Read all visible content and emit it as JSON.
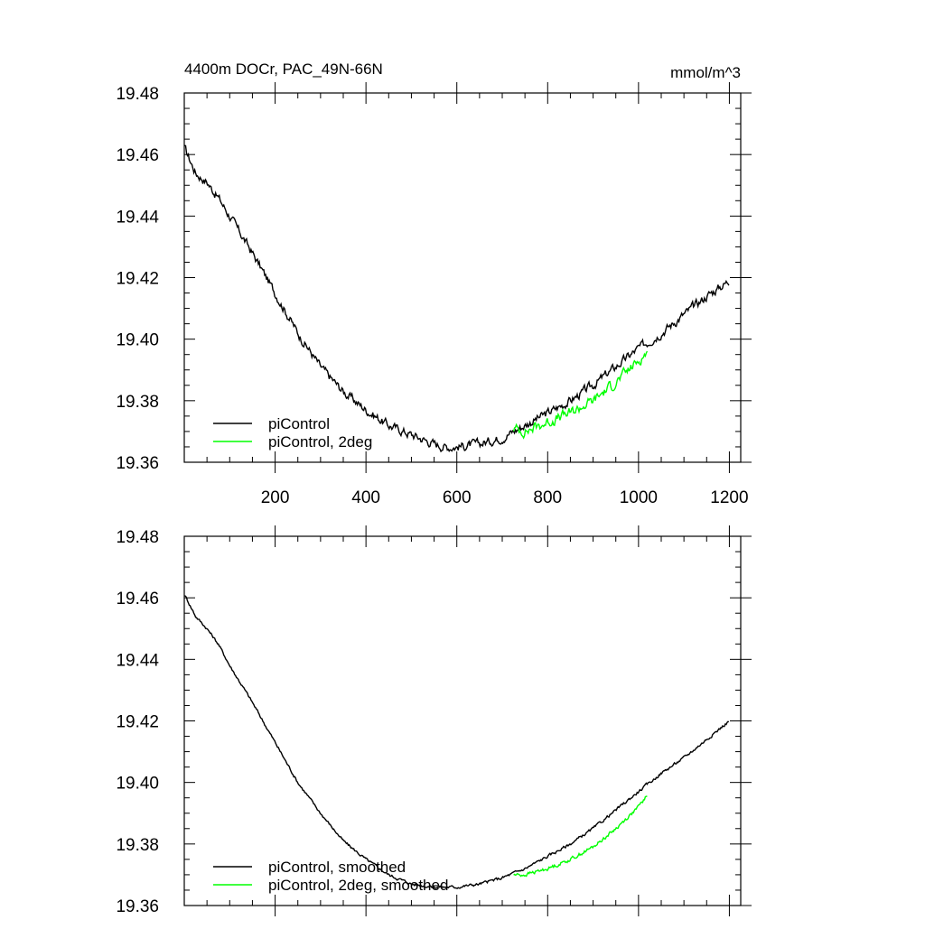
{
  "header": {
    "title": "4400m DOCr, PAC_49N-66N",
    "units": "mmol/m^3"
  },
  "chart_data": [
    {
      "type": "line",
      "title": "4400m DOCr, PAC_49N-66N",
      "units": "mmol/m^3",
      "xlim": [
        0,
        1225
      ],
      "ylim": [
        19.36,
        19.48
      ],
      "x_ticks": [
        200,
        400,
        600,
        800,
        1000,
        1200
      ],
      "x_tick_labels": [
        "200",
        "400",
        "600",
        "800",
        "1000",
        "1200"
      ],
      "y_ticks": [
        19.36,
        19.38,
        19.4,
        19.42,
        19.44,
        19.46,
        19.48
      ],
      "y_tick_labels": [
        "19.36",
        "19.38",
        "19.40",
        "19.42",
        "19.44",
        "19.46",
        "19.48"
      ],
      "grid": false,
      "legend_position": "bottom-left",
      "series": [
        {
          "name": "piControl",
          "color": "#000000",
          "noise": 0.0012,
          "x": [
            1,
            25,
            50,
            75,
            100,
            150,
            200,
            250,
            300,
            350,
            400,
            450,
            500,
            550,
            575,
            600,
            650,
            700,
            750,
            800,
            850,
            900,
            950,
            1000,
            1050,
            1100,
            1150,
            1200
          ],
          "y": [
            19.462,
            19.454,
            19.451,
            19.446,
            19.44,
            19.428,
            19.415,
            19.402,
            19.391,
            19.383,
            19.377,
            19.372,
            19.369,
            19.366,
            19.365,
            19.365,
            19.366,
            19.368,
            19.372,
            19.376,
            19.38,
            19.385,
            19.391,
            19.397,
            19.402,
            19.408,
            19.414,
            19.419
          ]
        },
        {
          "name": "piControl, 2deg",
          "color": "#00ff00",
          "noise": 0.0014,
          "x": [
            725,
            750,
            800,
            850,
            900,
            950,
            1000,
            1020
          ],
          "y": [
            19.371,
            19.37,
            19.373,
            19.376,
            19.38,
            19.386,
            19.393,
            19.396
          ]
        }
      ]
    },
    {
      "type": "line",
      "xlim": [
        0,
        1225
      ],
      "ylim": [
        19.36,
        19.48
      ],
      "y_ticks": [
        19.36,
        19.38,
        19.4,
        19.42,
        19.44,
        19.46,
        19.48
      ],
      "y_tick_labels": [
        "19.36",
        "19.38",
        "19.40",
        "19.42",
        "19.44",
        "19.46",
        "19.48"
      ],
      "grid": false,
      "legend_position": "bottom-left",
      "series": [
        {
          "name": "piControl, smoothed",
          "color": "#000000",
          "noise": 0.0004,
          "x": [
            1,
            25,
            50,
            75,
            100,
            150,
            200,
            250,
            300,
            350,
            400,
            450,
            500,
            550,
            600,
            650,
            700,
            750,
            800,
            850,
            900,
            950,
            1000,
            1050,
            1100,
            1150,
            1200
          ],
          "y": [
            19.461,
            19.454,
            19.45,
            19.445,
            19.438,
            19.426,
            19.413,
            19.4,
            19.39,
            19.381,
            19.375,
            19.37,
            19.367,
            19.366,
            19.366,
            19.367,
            19.369,
            19.372,
            19.376,
            19.38,
            19.385,
            19.391,
            19.397,
            19.403,
            19.408,
            19.414,
            19.42
          ]
        },
        {
          "name": "piControl, 2deg, smoothed",
          "color": "#00ff00",
          "noise": 0.0005,
          "x": [
            725,
            750,
            800,
            850,
            900,
            950,
            1000,
            1020
          ],
          "y": [
            19.37,
            19.37,
            19.372,
            19.375,
            19.379,
            19.385,
            19.392,
            19.396
          ]
        }
      ]
    }
  ]
}
